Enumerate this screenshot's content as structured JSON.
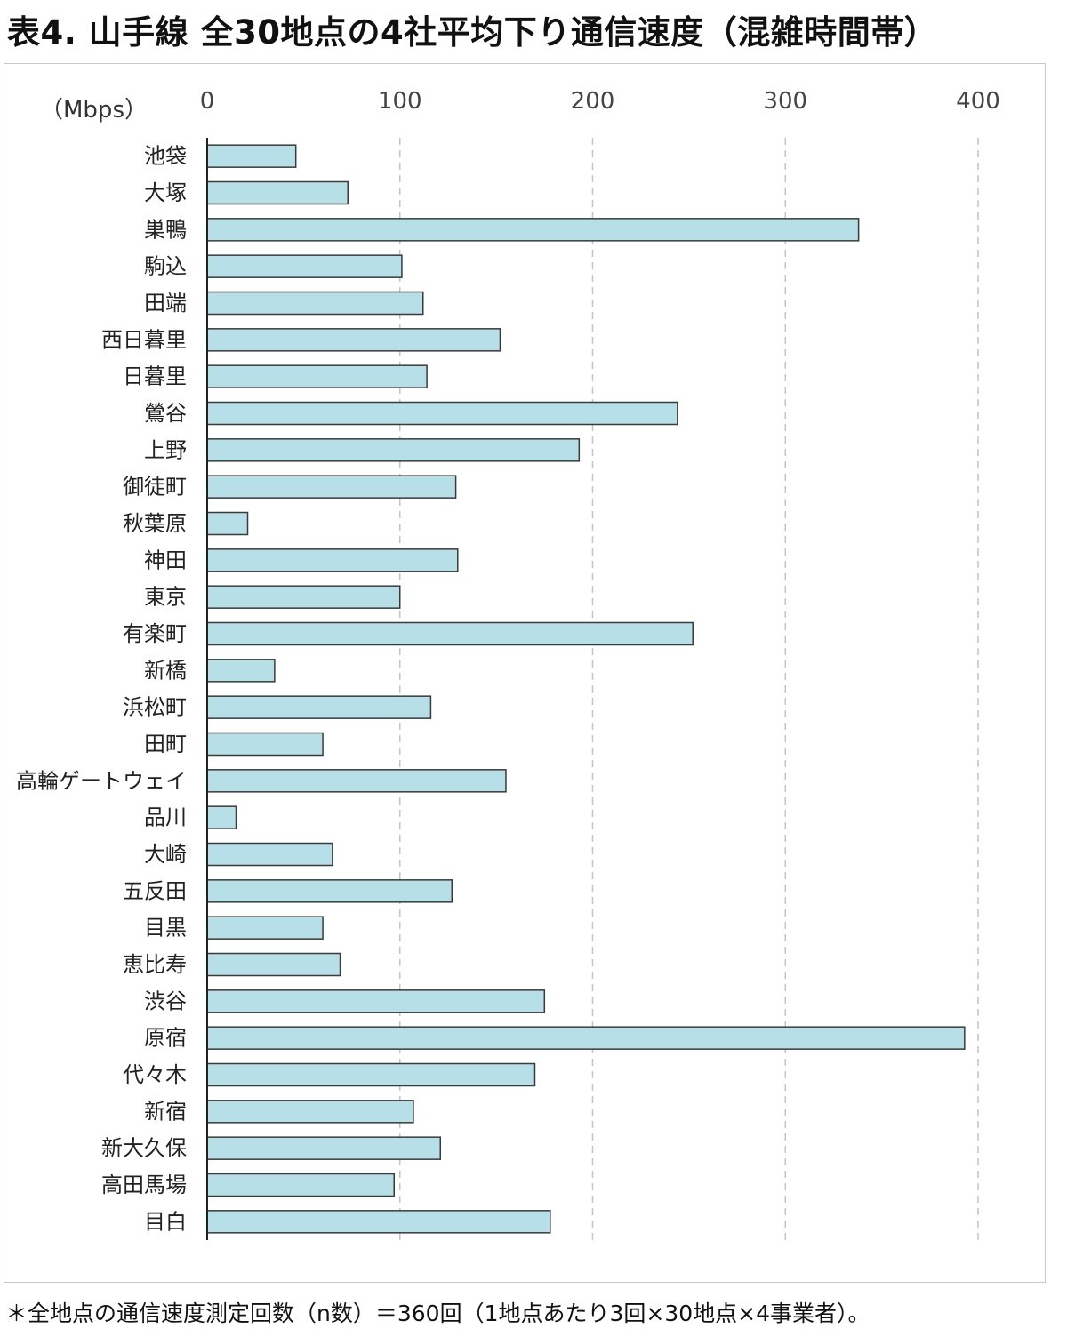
{
  "title": "表4. 山手線 全30地点の4社平均下り通信速度（混雑時間帯）",
  "footnote": "＊全地点の通信速度測定回数（n数）＝360回（1地点あたり3回×30地点×4事業者）。",
  "colors": {
    "bar_fill": "#b7dfe8",
    "bar_stroke": "#3a3a3a",
    "grid": "#c4c4c4",
    "axis": "#222222"
  },
  "chart_data": {
    "type": "bar",
    "orientation": "horizontal",
    "unit_label": "（Mbps）",
    "xlim": [
      0,
      400
    ],
    "x_ticks": [
      0,
      100,
      200,
      300,
      400
    ],
    "x_tick_labels": [
      "0",
      "100",
      "200",
      "300",
      "400"
    ],
    "x_axis_position": "top",
    "grid": "vertical dashed",
    "categories": [
      "池袋",
      "大塚",
      "巣鴨",
      "駒込",
      "田端",
      "西日暮里",
      "日暮里",
      "鶯谷",
      "上野",
      "御徒町",
      "秋葉原",
      "神田",
      "東京",
      "有楽町",
      "新橋",
      "浜松町",
      "田町",
      "高輪ゲートウェイ",
      "品川",
      "大崎",
      "五反田",
      "目黒",
      "恵比寿",
      "渋谷",
      "原宿",
      "代々木",
      "新宿",
      "新大久保",
      "高田馬場",
      "目白"
    ],
    "values": [
      46,
      73,
      338,
      101,
      112,
      152,
      114,
      244,
      193,
      129,
      21,
      130,
      100,
      252,
      35,
      116,
      60,
      155,
      15,
      65,
      127,
      60,
      69,
      175,
      393,
      170,
      107,
      121,
      97,
      178
    ]
  }
}
